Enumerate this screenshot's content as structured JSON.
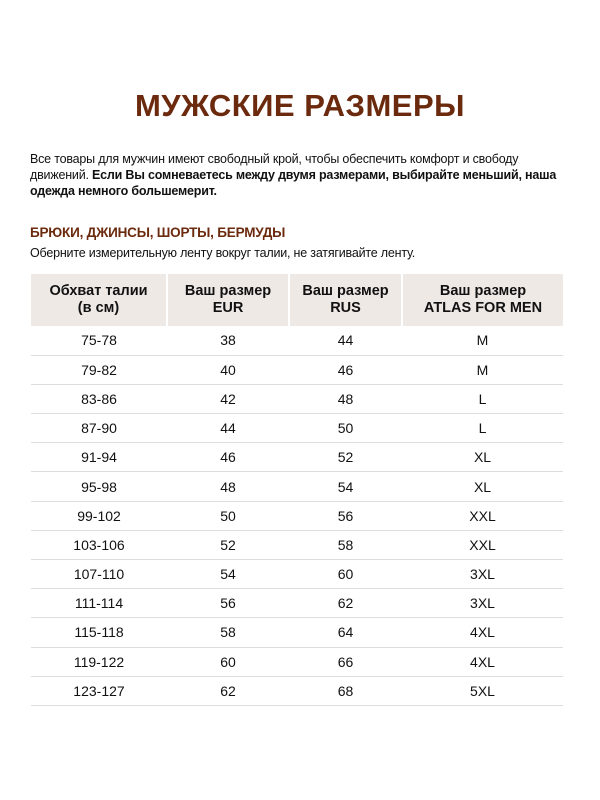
{
  "title": "МУЖСКИЕ РАЗМЕРЫ",
  "intro": {
    "normal": "Все товары для мужчин имеют свободный крой, чтобы обеспечить комфорт и свободу движений. ",
    "bold": "Если Вы сомневаетесь между двумя размерами, выбирайте меньший, наша одежда немного большемерит."
  },
  "section": {
    "heading": "БРЮКИ, ДЖИНСЫ, ШОРТЫ, БЕРМУДЫ",
    "note": "Оберните измерительную ленту вокруг талии, не затягивайте ленту."
  },
  "table": {
    "headers": [
      [
        "Обхват талии",
        "(в см)"
      ],
      [
        "Ваш размер",
        "EUR"
      ],
      [
        "Ваш размер",
        "RUS"
      ],
      [
        "Ваш размер",
        "ATLAS FOR MEN"
      ]
    ],
    "rows": [
      [
        "75-78",
        "38",
        "44",
        "M"
      ],
      [
        "79-82",
        "40",
        "46",
        "M"
      ],
      [
        "83-86",
        "42",
        "48",
        "L"
      ],
      [
        "87-90",
        "44",
        "50",
        "L"
      ],
      [
        "91-94",
        "46",
        "52",
        "XL"
      ],
      [
        "95-98",
        "48",
        "54",
        "XL"
      ],
      [
        "99-102",
        "50",
        "56",
        "XXL"
      ],
      [
        "103-106",
        "52",
        "58",
        "XXL"
      ],
      [
        "107-110",
        "54",
        "60",
        "3XL"
      ],
      [
        "111-114",
        "56",
        "62",
        "3XL"
      ],
      [
        "115-118",
        "58",
        "64",
        "4XL"
      ],
      [
        "119-122",
        "60",
        "66",
        "4XL"
      ],
      [
        "123-127",
        "62",
        "68",
        "5XL"
      ]
    ]
  },
  "colors": {
    "accent": "#6b2a0e",
    "header_bg": "#efe9e6"
  }
}
